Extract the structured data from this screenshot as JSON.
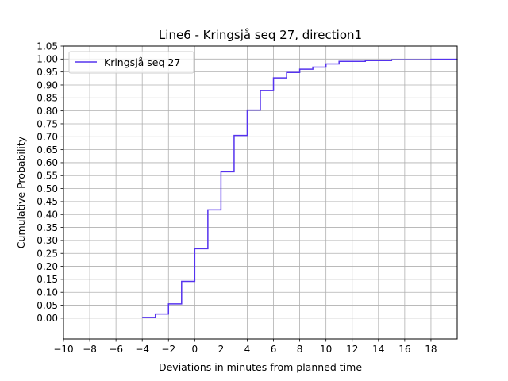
{
  "chart_data": {
    "type": "line",
    "step": "post",
    "title": "Line6 - Kringsjå seq 27, direction1",
    "xlabel": "Deviations in minutes from planned time",
    "ylabel": "Cumulative Probability",
    "xlim": [
      -10,
      20
    ],
    "ylim": [
      -0.08,
      1.05
    ],
    "xticks": [
      -10,
      -8,
      -6,
      -4,
      -2,
      0,
      2,
      4,
      6,
      8,
      10,
      12,
      14,
      16,
      18
    ],
    "xtick_labels": [
      "−10",
      "−8",
      "−6",
      "−4",
      "−2",
      "0",
      "2",
      "4",
      "6",
      "8",
      "10",
      "12",
      "14",
      "16",
      "18"
    ],
    "yticks": [
      0.0,
      0.05,
      0.1,
      0.15,
      0.2,
      0.25,
      0.3,
      0.35,
      0.4,
      0.45,
      0.5,
      0.55,
      0.6,
      0.65,
      0.7,
      0.75,
      0.8,
      0.85,
      0.9,
      0.95,
      1.0,
      1.05
    ],
    "ytick_labels": [
      "0.00",
      "0.05",
      "0.10",
      "0.15",
      "0.20",
      "0.25",
      "0.30",
      "0.35",
      "0.40",
      "0.45",
      "0.50",
      "0.55",
      "0.60",
      "0.65",
      "0.70",
      "0.75",
      "0.80",
      "0.85",
      "0.90",
      "0.95",
      "1.00",
      "1.05"
    ],
    "grid": true,
    "legend_position": "top-left",
    "series": [
      {
        "name": "Kringsjå seq 27",
        "color": "#5533ee",
        "x": [
          -4,
          -3,
          -2,
          -1,
          0,
          1,
          2,
          3,
          4,
          5,
          6,
          7,
          8,
          9,
          10,
          11,
          13,
          15,
          18,
          20
        ],
        "y": [
          0.003,
          0.016,
          0.055,
          0.142,
          0.268,
          0.418,
          0.565,
          0.705,
          0.803,
          0.878,
          0.927,
          0.948,
          0.961,
          0.969,
          0.981,
          0.991,
          0.994,
          0.997,
          0.999,
          1.0
        ]
      }
    ]
  }
}
